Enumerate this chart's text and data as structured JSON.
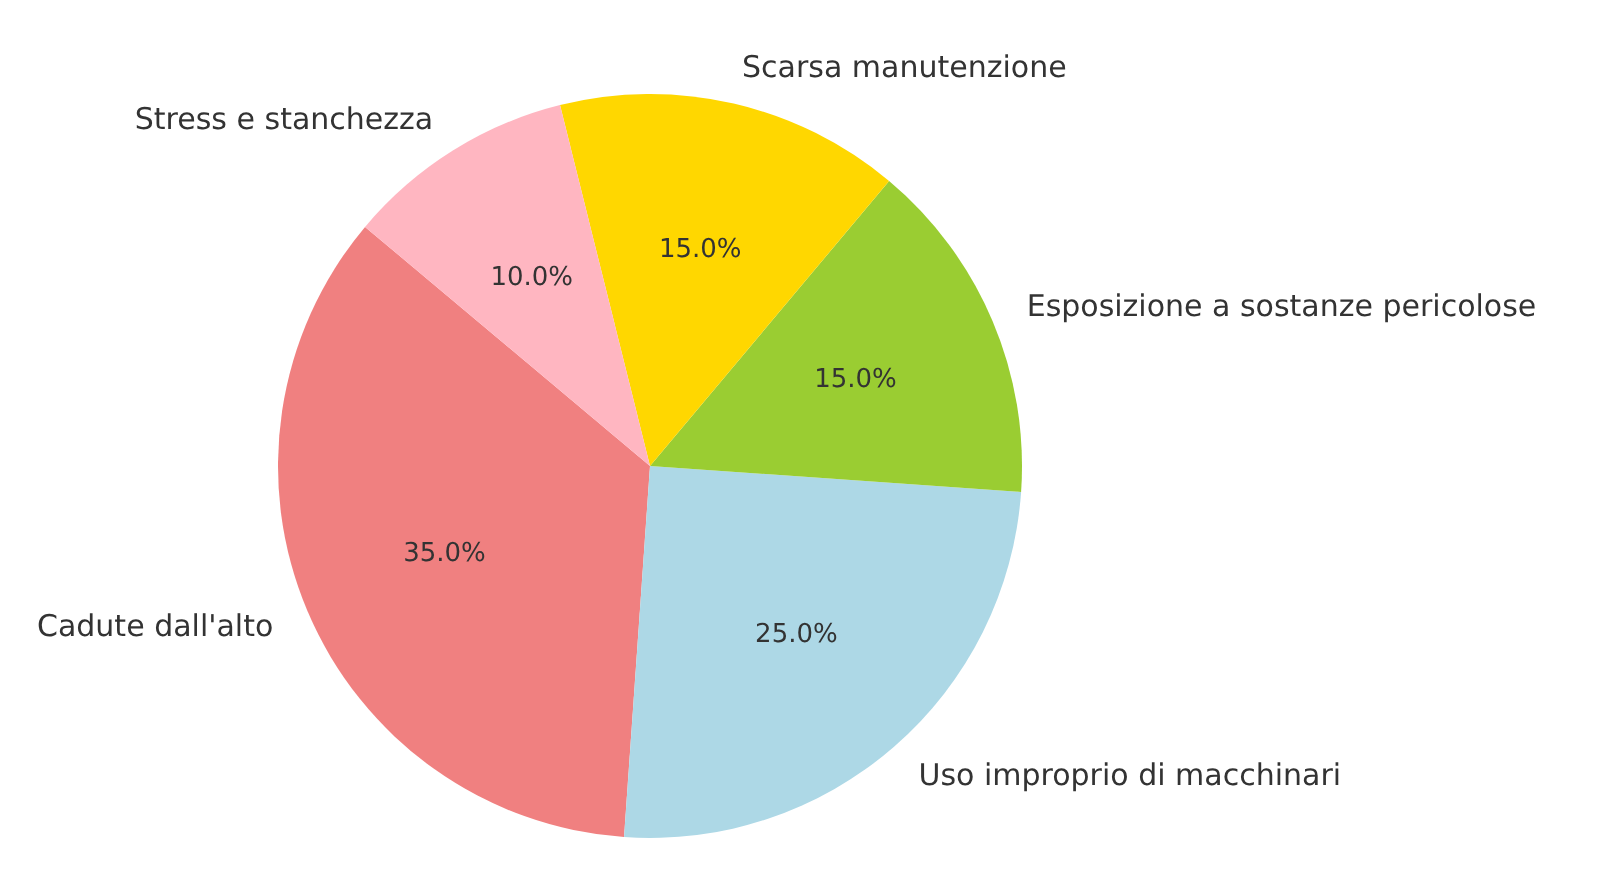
{
  "chart_data": {
    "type": "pie",
    "categories": [
      "Cadute dall'alto",
      "Uso improprio di macchinari",
      "Esposizione a sostanze pericolose",
      "Scarsa manutenzione",
      "Stress e stanchezza"
    ],
    "values": [
      35,
      25,
      15,
      15,
      10
    ],
    "value_labels": [
      "35.0%",
      "25.0%",
      "15.0%",
      "15.0%",
      "10.0%"
    ],
    "colors": [
      "#f08080",
      "#add8e6",
      "#9acd32",
      "#ffd700",
      "#ffb6c1"
    ]
  }
}
